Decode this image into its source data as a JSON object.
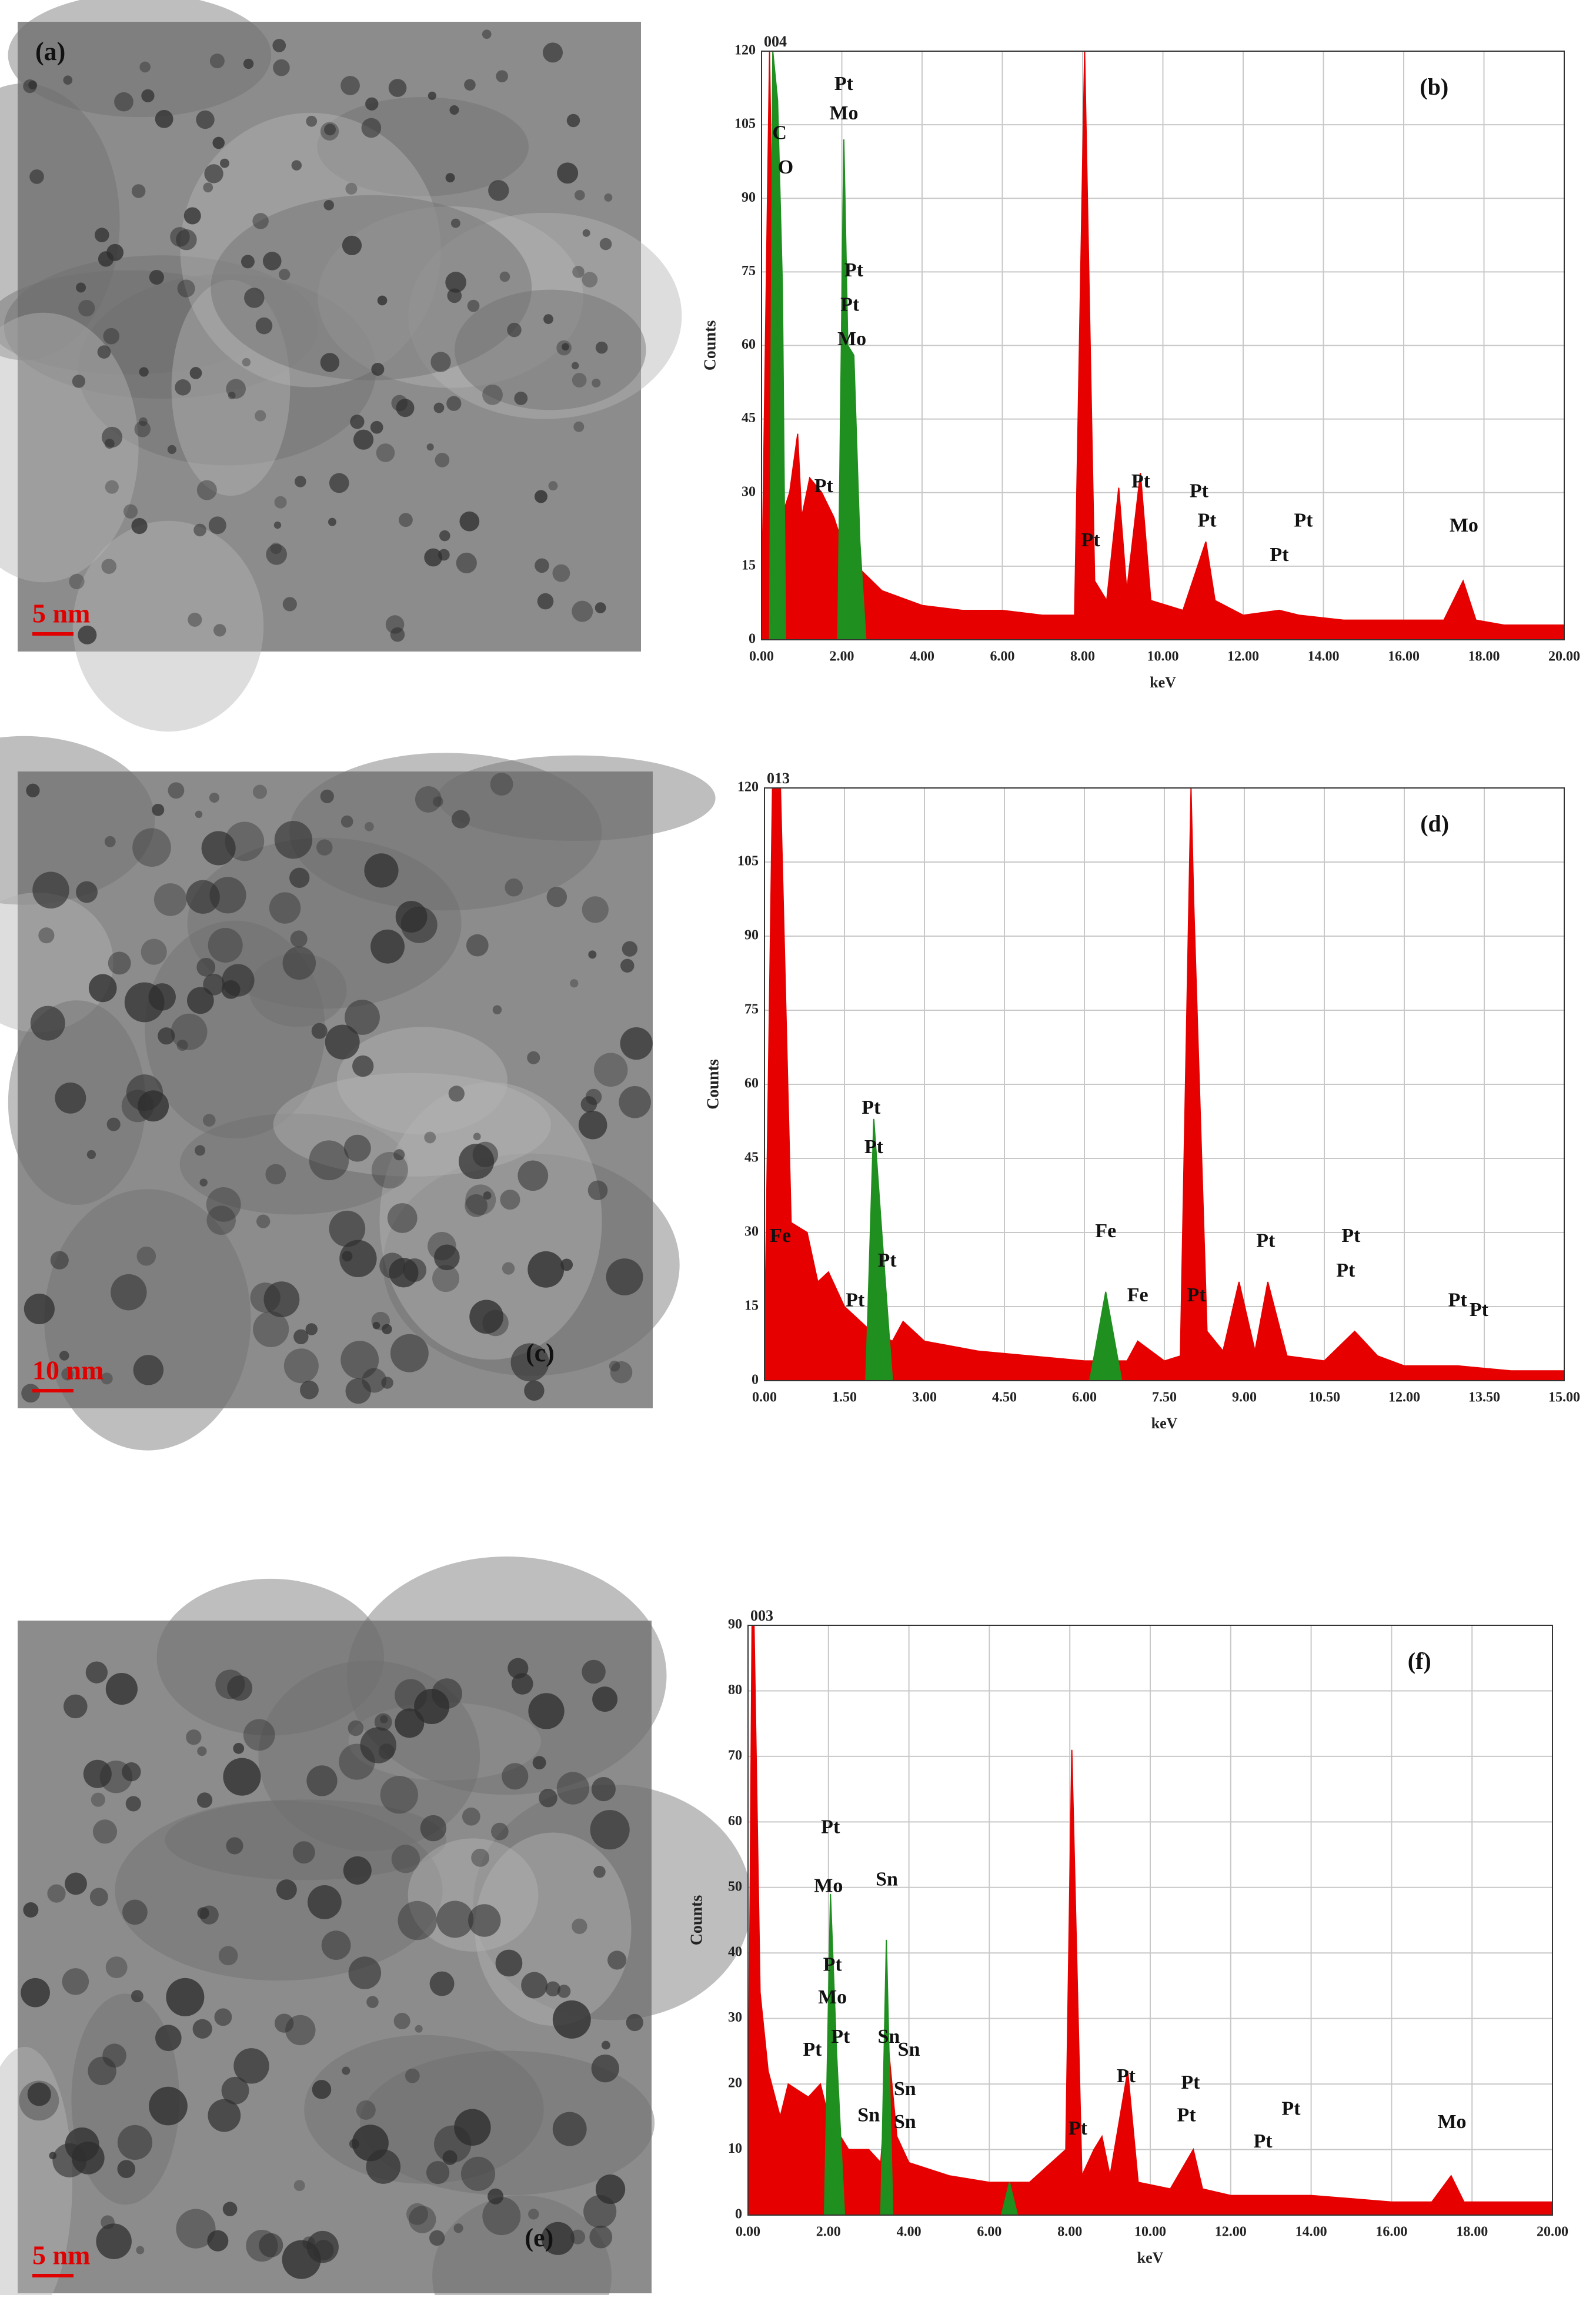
{
  "panels": [
    {
      "label": "(a)",
      "scale_bar": "5 nm"
    },
    {
      "label": "(c)",
      "scale_bar": "10 nm"
    },
    {
      "label": "(e)",
      "scale_bar": "5 nm"
    }
  ],
  "chart_data": [
    {
      "type": "area",
      "title": "004",
      "panel_label": "(b)",
      "x_label": "keV",
      "y_label": "Counts",
      "xlim": [
        0,
        20
      ],
      "xticks": [
        {
          "value": 0,
          "label": "0.00"
        },
        {
          "value": 2,
          "label": "2.00"
        },
        {
          "value": 4,
          "label": "4.00"
        },
        {
          "value": 6,
          "label": "6.00"
        },
        {
          "value": 8,
          "label": "8.00"
        },
        {
          "value": 10,
          "label": "10.00"
        },
        {
          "value": 12,
          "label": "12.00"
        },
        {
          "value": 14,
          "label": "14.00"
        },
        {
          "value": 16,
          "label": "16.00"
        },
        {
          "value": 18,
          "label": "18.00"
        },
        {
          "value": 20,
          "label": "20.00"
        }
      ],
      "ylim": [
        0,
        120
      ],
      "yticks": [
        0,
        15,
        30,
        45,
        60,
        75,
        90,
        105,
        120
      ],
      "grid": true,
      "series": [
        {
          "color": "#e60000",
          "x": [
            0,
            0.2,
            0.3,
            0.5,
            0.7,
            0.9,
            1.0,
            1.2,
            1.5,
            1.8,
            2.0,
            2.5,
            3.0,
            4.0,
            5.0,
            6.0,
            7.0,
            7.8,
            8.05,
            8.3,
            8.6,
            8.9,
            9.1,
            9.44,
            9.7,
            10.5,
            11.07,
            11.3,
            12.0,
            12.9,
            13.4,
            14.5,
            16.0,
            17.0,
            17.48,
            17.8,
            18.5,
            20
          ],
          "values": [
            5,
            120,
            60,
            25,
            30,
            42,
            25,
            33,
            30,
            25,
            20,
            14,
            10,
            7,
            6,
            6,
            5,
            5,
            120,
            12,
            8,
            31,
            10,
            34,
            8,
            6,
            20,
            8,
            5,
            6,
            5,
            4,
            4,
            4,
            12,
            4,
            3,
            3
          ]
        },
        {
          "color": "#1f8f1f",
          "x": [
            0.2,
            0.28,
            0.4,
            0.52,
            0.6,
            1.2,
            1.9,
            2.05,
            2.15,
            2.3,
            2.45,
            2.6
          ],
          "values": [
            0,
            120,
            110,
            72,
            0,
            null,
            0,
            102,
            60,
            58,
            20,
            0
          ]
        }
      ],
      "annotations": [
        {
          "text": "Pt",
          "x": 2.05,
          "y": 113
        },
        {
          "text": "Mo",
          "x": 2.05,
          "y": 107
        },
        {
          "text": "C",
          "x": 0.45,
          "y": 103
        },
        {
          "text": "O",
          "x": 0.6,
          "y": 96
        },
        {
          "text": "Pt",
          "x": 2.3,
          "y": 75
        },
        {
          "text": "Pt",
          "x": 2.2,
          "y": 68
        },
        {
          "text": "Mo",
          "x": 2.25,
          "y": 61
        },
        {
          "text": "Pt",
          "x": 1.55,
          "y": 31
        },
        {
          "text": "Pt",
          "x": 8.2,
          "y": 20
        },
        {
          "text": "Pt",
          "x": 9.45,
          "y": 32
        },
        {
          "text": "Pt",
          "x": 10.9,
          "y": 30
        },
        {
          "text": "Pt",
          "x": 11.1,
          "y": 24
        },
        {
          "text": "Pt",
          "x": 12.9,
          "y": 17
        },
        {
          "text": "Pt",
          "x": 13.5,
          "y": 24
        },
        {
          "text": "Mo",
          "x": 17.5,
          "y": 23
        }
      ]
    },
    {
      "type": "area",
      "title": "013",
      "panel_label": "(d)",
      "x_label": "keV",
      "y_label": "Counts",
      "xlim": [
        0,
        15
      ],
      "xticks": [
        {
          "value": 0,
          "label": "0.00"
        },
        {
          "value": 1.5,
          "label": "1.50"
        },
        {
          "value": 3,
          "label": "3.00"
        },
        {
          "value": 4.5,
          "label": "4.50"
        },
        {
          "value": 6,
          "label": "6.00"
        },
        {
          "value": 7.5,
          "label": "7.50"
        },
        {
          "value": 9,
          "label": "9.00"
        },
        {
          "value": 10.5,
          "label": "10.50"
        },
        {
          "value": 12,
          "label": "12.00"
        },
        {
          "value": 13.5,
          "label": "13.50"
        },
        {
          "value": 15,
          "label": "15.00"
        }
      ],
      "ylim": [
        0,
        120
      ],
      "yticks": [
        0,
        15,
        30,
        45,
        60,
        75,
        90,
        105,
        120
      ],
      "grid": true,
      "series": [
        {
          "color": "#e60000",
          "x": [
            0,
            0.15,
            0.3,
            0.5,
            0.8,
            1.0,
            1.2,
            1.5,
            1.8,
            2.0,
            2.4,
            2.6,
            3.0,
            4.0,
            5.0,
            6.0,
            6.8,
            7.0,
            7.5,
            7.8,
            8.0,
            8.05,
            8.3,
            8.6,
            8.9,
            9.2,
            9.44,
            9.8,
            10.5,
            11.07,
            11.5,
            12.0,
            13.0,
            14.0,
            15.0
          ],
          "values": [
            5,
            120,
            120,
            32,
            30,
            20,
            22,
            15,
            12,
            10,
            8,
            12,
            8,
            6,
            5,
            4,
            4,
            8,
            4,
            5,
            120,
            97,
            10,
            6,
            20,
            6,
            20,
            5,
            4,
            10,
            5,
            3,
            3,
            2,
            2
          ]
        },
        {
          "color": "#1f8f1f",
          "x": [
            1.9,
            2.05,
            2.2,
            2.4,
            4.0,
            6.1,
            6.4,
            6.7
          ],
          "values": [
            0,
            53,
            30,
            0,
            null,
            0,
            18,
            0
          ]
        }
      ],
      "annotations": [
        {
          "text": "Fe",
          "x": 0.3,
          "y": 29
        },
        {
          "text": "Pt",
          "x": 2.0,
          "y": 55
        },
        {
          "text": "Pt",
          "x": 2.05,
          "y": 47
        },
        {
          "text": "Pt",
          "x": 2.3,
          "y": 24
        },
        {
          "text": "Pt",
          "x": 1.7,
          "y": 16
        },
        {
          "text": "Fe",
          "x": 6.4,
          "y": 30
        },
        {
          "text": "Fe",
          "x": 7.0,
          "y": 17
        },
        {
          "text": "Pt",
          "x": 8.1,
          "y": 17
        },
        {
          "text": "Pt",
          "x": 9.4,
          "y": 28
        },
        {
          "text": "Pt",
          "x": 11.0,
          "y": 29
        },
        {
          "text": "Pt",
          "x": 10.9,
          "y": 22
        },
        {
          "text": "Pt",
          "x": 13.0,
          "y": 16
        },
        {
          "text": "Pt",
          "x": 13.4,
          "y": 14
        }
      ]
    },
    {
      "type": "area",
      "title": "003",
      "panel_label": "(f)",
      "x_label": "keV",
      "y_label": "Counts",
      "xlim": [
        0,
        20
      ],
      "xticks": [
        {
          "value": 0,
          "label": "0.00"
        },
        {
          "value": 2,
          "label": "2.00"
        },
        {
          "value": 4,
          "label": "4.00"
        },
        {
          "value": 6,
          "label": "6.00"
        },
        {
          "value": 8,
          "label": "8.00"
        },
        {
          "value": 10,
          "label": "10.00"
        },
        {
          "value": 12,
          "label": "12.00"
        },
        {
          "value": 14,
          "label": "14.00"
        },
        {
          "value": 16,
          "label": "16.00"
        },
        {
          "value": 18,
          "label": "18.00"
        },
        {
          "value": 20,
          "label": "20.00"
        }
      ],
      "ylim": [
        0,
        90
      ],
      "yticks": [
        0,
        10,
        20,
        30,
        40,
        50,
        60,
        70,
        80,
        90
      ],
      "grid": true,
      "series": [
        {
          "color": "#e60000",
          "x": [
            0,
            0.1,
            0.15,
            0.3,
            0.5,
            0.8,
            1.0,
            1.5,
            1.8,
            2.0,
            2.5,
            3.0,
            3.3,
            3.5,
            3.7,
            4.0,
            5.0,
            6.0,
            7.0,
            7.9,
            8.05,
            8.3,
            8.6,
            8.8,
            9.0,
            9.44,
            9.7,
            10.5,
            11.07,
            11.3,
            12.0,
            13.0,
            14.0,
            16.0,
            17.0,
            17.48,
            17.8,
            19,
            20
          ],
          "values": [
            5,
            90,
            90,
            34,
            22,
            15,
            20,
            18,
            20,
            15,
            10,
            10,
            8,
            25,
            12,
            8,
            6,
            5,
            5,
            10,
            71,
            6,
            10,
            12,
            6,
            22,
            5,
            4,
            10,
            4,
            3,
            3,
            3,
            2,
            2,
            6,
            2,
            2,
            2
          ]
        },
        {
          "color": "#1f8f1f",
          "x": [
            1.9,
            2.05,
            2.2,
            2.4,
            2.85,
            3.3,
            3.44,
            3.6,
            5.0,
            6.3,
            6.5,
            6.7
          ],
          "values": [
            0,
            49,
            25,
            0,
            null,
            0,
            42,
            0,
            null,
            0,
            5,
            0
          ]
        }
      ],
      "annotations": [
        {
          "text": "Pt",
          "x": 2.05,
          "y": 59
        },
        {
          "text": "Mo",
          "x": 2.0,
          "y": 50
        },
        {
          "text": "Sn",
          "x": 3.45,
          "y": 51
        },
        {
          "text": "Pt",
          "x": 2.1,
          "y": 38
        },
        {
          "text": "Mo",
          "x": 2.1,
          "y": 33
        },
        {
          "text": "Pt",
          "x": 1.6,
          "y": 25
        },
        {
          "text": "Pt",
          "x": 2.3,
          "y": 27
        },
        {
          "text": "Sn",
          "x": 3.5,
          "y": 27
        },
        {
          "text": "Sn",
          "x": 4.0,
          "y": 25
        },
        {
          "text": "Sn",
          "x": 3.9,
          "y": 19
        },
        {
          "text": "Sn",
          "x": 3.0,
          "y": 15
        },
        {
          "text": "Sn",
          "x": 3.9,
          "y": 14
        },
        {
          "text": "Pt",
          "x": 8.2,
          "y": 13
        },
        {
          "text": "Pt",
          "x": 9.4,
          "y": 21
        },
        {
          "text": "Pt",
          "x": 11.0,
          "y": 20
        },
        {
          "text": "Pt",
          "x": 10.9,
          "y": 15
        },
        {
          "text": "Pt",
          "x": 13.5,
          "y": 16
        },
        {
          "text": "Pt",
          "x": 12.8,
          "y": 11
        },
        {
          "text": "Mo",
          "x": 17.5,
          "y": 14
        }
      ]
    }
  ]
}
